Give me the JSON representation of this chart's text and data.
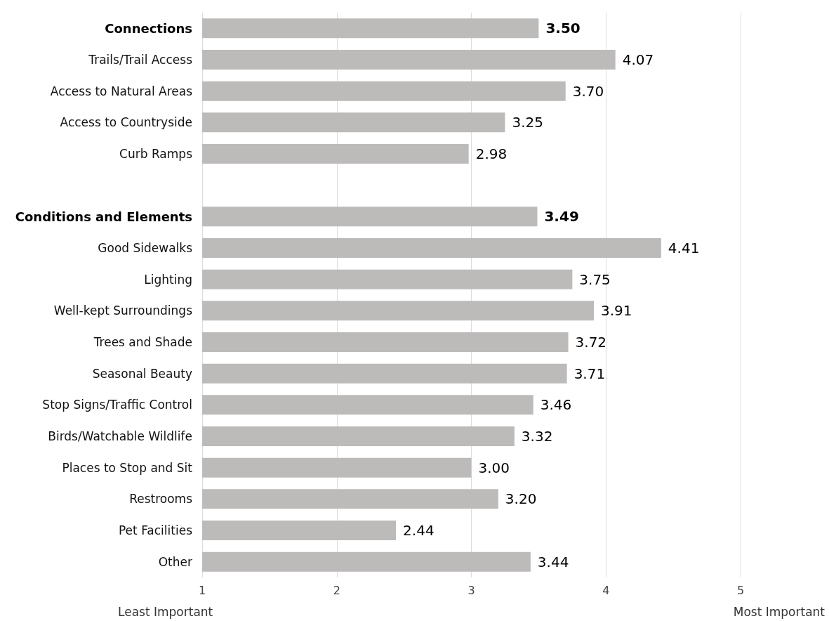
{
  "chart_data": {
    "type": "bar",
    "orientation": "horizontal",
    "categories": [
      "Connections",
      "Trails/Trail Access",
      "Access to Natural Areas",
      "Access to Countryside",
      "Curb Ramps",
      null,
      "Conditions and Elements",
      "Good Sidewalks",
      "Lighting",
      "Well-kept Surroundings",
      "Trees and Shade",
      "Seasonal Beauty",
      "Stop Signs/Traffic Control",
      "Birds/Watchable Wildlife",
      "Places to Stop and Sit",
      "Restrooms",
      "Pet Facilities",
      "Other"
    ],
    "values": [
      3.5,
      4.07,
      3.7,
      3.25,
      2.98,
      null,
      3.49,
      4.41,
      3.75,
      3.91,
      3.72,
      3.71,
      3.46,
      3.32,
      3.0,
      3.2,
      2.44,
      3.44
    ],
    "value_labels": [
      "3.50",
      "4.07",
      "3.70",
      "3.25",
      "2.98",
      null,
      "3.49",
      "4.41",
      "3.75",
      "3.91",
      "3.72",
      "3.71",
      "3.46",
      "3.32",
      "3.00",
      "3.20",
      "2.44",
      "3.44"
    ],
    "color": "#bdbaba",
    "xlim": [
      1,
      5
    ],
    "xticks": [
      1,
      2,
      3,
      4,
      5
    ],
    "grid": "x",
    "annotations": [
      "Least Important",
      "Most Important"
    ]
  }
}
